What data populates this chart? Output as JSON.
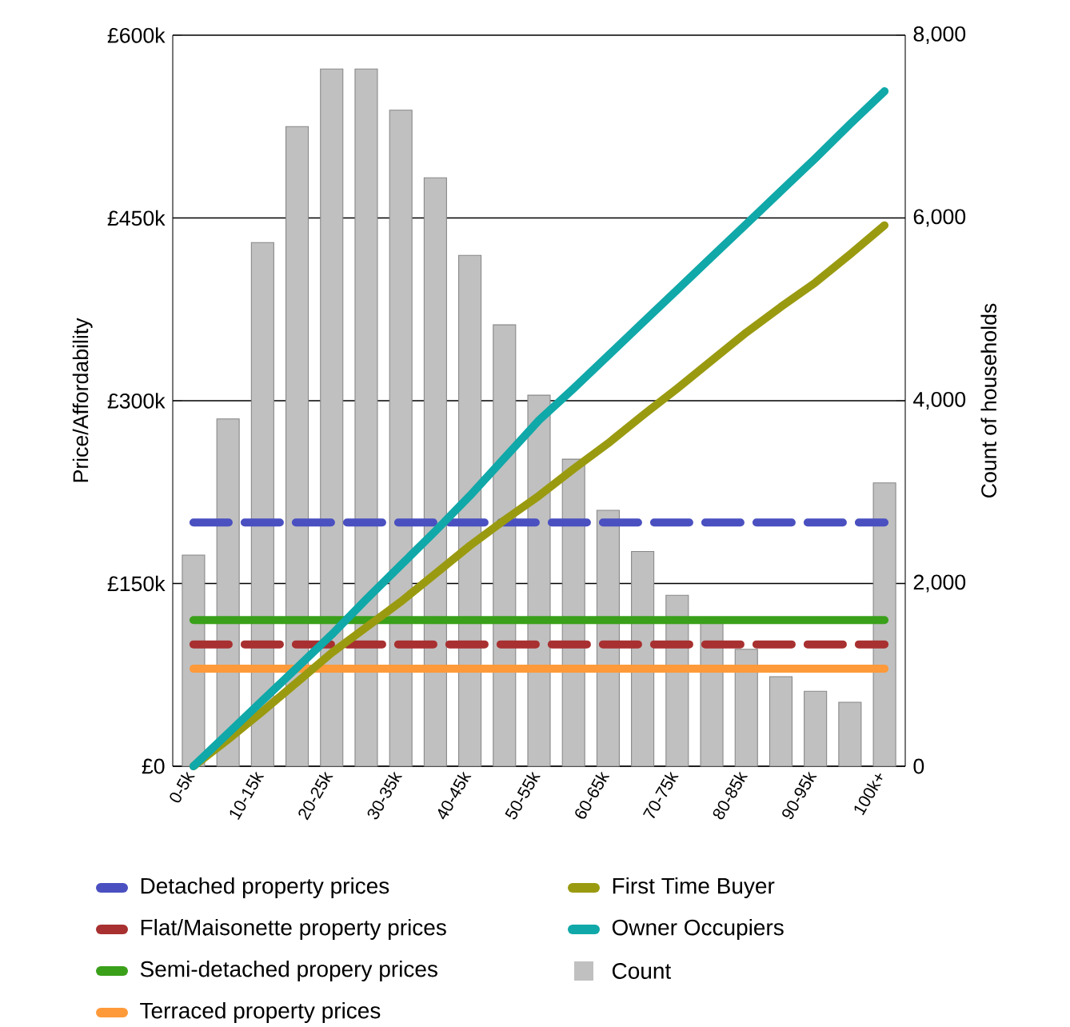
{
  "chart_data": {
    "type": "line",
    "ylabel": "Price/Affordability",
    "y2label": "Count of households",
    "categories": [
      "0-5k",
      null,
      "10-15k",
      null,
      "20-25k",
      null,
      "30-35k",
      null,
      "40-45k",
      null,
      "50-55k",
      null,
      "60-65k",
      null,
      "70-75k",
      null,
      "80-85k",
      null,
      "90-95k",
      null,
      "100k+"
    ],
    "ylim": [
      0,
      600000
    ],
    "yticks": [
      {
        "value": 0,
        "label": "£0"
      },
      {
        "value": 150000,
        "label": "£150k"
      },
      {
        "value": 300000,
        "label": "£300k"
      },
      {
        "value": 450000,
        "label": "£450k"
      },
      {
        "value": 600000,
        "label": "£600k"
      }
    ],
    "y2lim": [
      0,
      8000
    ],
    "y2ticks": [
      0,
      {
        "value": 2000,
        "label": "2,000"
      },
      {
        "value": 4000,
        "label": "4,000"
      },
      {
        "value": 6000,
        "label": "6,000"
      },
      {
        "value": 8000,
        "label": "8,000"
      }
    ],
    "grid": "y",
    "legend": "bottom",
    "series": [
      {
        "name": "Detached property prices",
        "color": "#4a50c0",
        "line_style": "dashed",
        "values": [
          200000,
          200000,
          200000,
          200000,
          200000,
          200000,
          200000,
          200000,
          200000,
          200000,
          200000,
          200000,
          200000,
          200000,
          200000,
          200000,
          200000,
          200000,
          200000,
          200000,
          200000
        ]
      },
      {
        "name": "Flat/Maisonette property prices",
        "color": "#a83030",
        "line_style": "dashed",
        "values": [
          100000,
          100000,
          100000,
          100000,
          100000,
          100000,
          100000,
          100000,
          100000,
          100000,
          100000,
          100000,
          100000,
          100000,
          100000,
          100000,
          100000,
          100000,
          100000,
          100000,
          100000
        ]
      },
      {
        "name": "Semi-detached propery prices",
        "color": "#3aa01a",
        "line_style": "solid",
        "values": [
          120000,
          120000,
          120000,
          120000,
          120000,
          120000,
          120000,
          120000,
          120000,
          120000,
          120000,
          120000,
          120000,
          120000,
          120000,
          120000,
          120000,
          120000,
          120000,
          120000,
          120000
        ]
      },
      {
        "name": "Terraced property prices",
        "color": "#ff9a3a",
        "line_style": "solid",
        "values": [
          80000,
          80000,
          80000,
          80000,
          80000,
          80000,
          80000,
          80000,
          80000,
          80000,
          80000,
          80000,
          80000,
          80000,
          80000,
          80000,
          80000,
          80000,
          80000,
          80000,
          80000
        ]
      },
      {
        "name": "First Time Buyer",
        "color": "#9a9a10",
        "line_style": "solid",
        "values": [
          0,
          22000,
          45000,
          69000,
          93000,
          114000,
          135000,
          158000,
          181000,
          202000,
          222000,
          244000,
          265000,
          288000,
          310000,
          333000,
          356000,
          377000,
          397000,
          420000,
          444000
        ]
      },
      {
        "name": "Owner Occupiers",
        "color": "#10a8a8",
        "line_style": "solid",
        "values": [
          0,
          27000,
          54000,
          81000,
          108000,
          137000,
          165000,
          193000,
          222000,
          253000,
          284000,
          310000,
          337000,
          364000,
          391000,
          418000,
          445000,
          472000,
          499000,
          527000,
          554000
        ]
      },
      {
        "name": "Count",
        "color": "#c0c0c0",
        "type": "bar",
        "axis": "y2",
        "values": [
          2310,
          3800,
          5730,
          7000,
          7630,
          7630,
          7180,
          6440,
          5590,
          4830,
          4060,
          3360,
          2800,
          2350,
          1870,
          1600,
          1280,
          980,
          820,
          700,
          3100
        ]
      }
    ]
  }
}
